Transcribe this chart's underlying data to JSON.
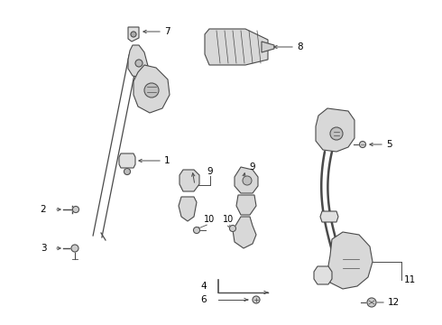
{
  "bg_color": "#ffffff",
  "line_color": "#4a4a4a",
  "text_color": "#000000",
  "fig_width": 4.9,
  "fig_height": 3.6,
  "dpi": 100
}
